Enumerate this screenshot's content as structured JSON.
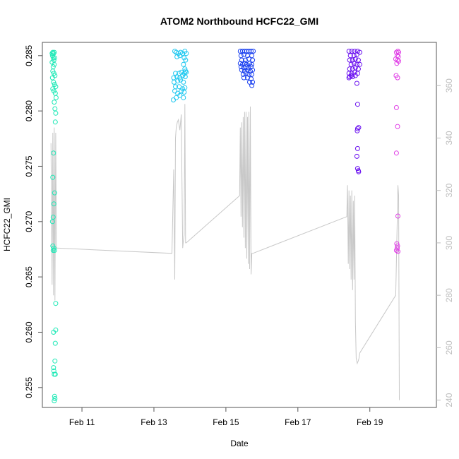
{
  "chart_data": {
    "type": "scatter",
    "title": "ATOM2 Northbound HCFC22_GMI",
    "xlabel": "Date",
    "ylabel": "HCFC22_GMI",
    "x_unit": "days in February",
    "xlim": [
      9.9,
      20.85
    ],
    "ylim": [
      0.2532,
      0.2862
    ],
    "y2lim": [
      237.2,
      376.5
    ],
    "x_ticks": [
      11,
      13,
      15,
      17,
      19
    ],
    "x_tick_labels": [
      "Feb 11",
      "Feb 13",
      "Feb 15",
      "Feb 17",
      "Feb 19"
    ],
    "y_ticks": [
      0.255,
      0.26,
      0.265,
      0.27,
      0.275,
      0.28,
      0.285
    ],
    "y_tick_labels": [
      "0.255",
      "0.260",
      "0.265",
      "0.270",
      "0.275",
      "0.280",
      "0.285"
    ],
    "y2_ticks": [
      240,
      260,
      280,
      300,
      320,
      340,
      360
    ],
    "y2_tick_labels": [
      "240",
      "260",
      "280",
      "300",
      "320",
      "340",
      "360"
    ],
    "line_color": "#c8c8c8",
    "right_axis_color": "#bdbdbd",
    "series": [
      {
        "color": "#1de9b6",
        "points": [
          [
            10.17,
            0.2852
          ],
          [
            10.19,
            0.2853
          ],
          [
            10.21,
            0.2852
          ],
          [
            10.23,
            0.2853
          ],
          [
            10.18,
            0.285
          ],
          [
            10.2,
            0.2848
          ],
          [
            10.22,
            0.2846
          ],
          [
            10.24,
            0.2848
          ],
          [
            10.17,
            0.2844
          ],
          [
            10.2,
            0.284
          ],
          [
            10.23,
            0.2842
          ],
          [
            10.19,
            0.2836
          ],
          [
            10.22,
            0.2834
          ],
          [
            10.25,
            0.2832
          ],
          [
            10.18,
            0.283
          ],
          [
            10.21,
            0.2826
          ],
          [
            10.24,
            0.2824
          ],
          [
            10.27,
            0.2822
          ],
          [
            10.19,
            0.282
          ],
          [
            10.22,
            0.2818
          ],
          [
            10.26,
            0.2816
          ],
          [
            10.28,
            0.2812
          ],
          [
            10.23,
            0.2808
          ],
          [
            10.25,
            0.2802
          ],
          [
            10.27,
            0.2798
          ],
          [
            10.26,
            0.279
          ],
          [
            10.21,
            0.2762
          ],
          [
            10.19,
            0.274
          ],
          [
            10.24,
            0.2726
          ],
          [
            10.22,
            0.2716
          ],
          [
            10.2,
            0.2704
          ],
          [
            10.18,
            0.27
          ],
          [
            10.19,
            0.2678
          ],
          [
            10.22,
            0.2676
          ],
          [
            10.2,
            0.2674
          ],
          [
            10.24,
            0.2674
          ],
          [
            10.27,
            0.2626
          ],
          [
            10.27,
            0.2602
          ],
          [
            10.21,
            0.26
          ],
          [
            10.26,
            0.259
          ],
          [
            10.25,
            0.2574
          ],
          [
            10.21,
            0.2568
          ],
          [
            10.22,
            0.2565
          ],
          [
            10.23,
            0.2562
          ],
          [
            10.26,
            0.2562
          ],
          [
            10.24,
            0.2542
          ],
          [
            10.25,
            0.254
          ],
          [
            10.23,
            0.2538
          ]
        ]
      },
      {
        "color": "#1ec8f0",
        "points": [
          [
            13.58,
            0.2854
          ],
          [
            13.62,
            0.2853
          ],
          [
            13.68,
            0.2852
          ],
          [
            13.74,
            0.2853
          ],
          [
            13.8,
            0.2852
          ],
          [
            13.86,
            0.2854
          ],
          [
            13.9,
            0.2852
          ],
          [
            13.64,
            0.2849
          ],
          [
            13.72,
            0.285
          ],
          [
            13.84,
            0.2848
          ],
          [
            13.88,
            0.2846
          ],
          [
            13.82,
            0.2842
          ],
          [
            13.86,
            0.2838
          ],
          [
            13.88,
            0.2836
          ],
          [
            13.6,
            0.2834
          ],
          [
            13.7,
            0.2834
          ],
          [
            13.76,
            0.2835
          ],
          [
            13.85,
            0.2834
          ],
          [
            13.9,
            0.2835
          ],
          [
            13.55,
            0.283
          ],
          [
            13.64,
            0.2831
          ],
          [
            13.72,
            0.283
          ],
          [
            13.8,
            0.2832
          ],
          [
            13.87,
            0.2831
          ],
          [
            13.56,
            0.2826
          ],
          [
            13.66,
            0.2827
          ],
          [
            13.74,
            0.2828
          ],
          [
            13.82,
            0.2826
          ],
          [
            13.6,
            0.2822
          ],
          [
            13.7,
            0.2822
          ],
          [
            13.8,
            0.282
          ],
          [
            13.86,
            0.2821
          ],
          [
            13.58,
            0.2818
          ],
          [
            13.66,
            0.2816
          ],
          [
            13.76,
            0.2818
          ],
          [
            13.84,
            0.2817
          ],
          [
            13.62,
            0.2812
          ],
          [
            13.72,
            0.2814
          ],
          [
            13.82,
            0.2812
          ],
          [
            13.54,
            0.281
          ]
        ]
      },
      {
        "color": "#1a40f0",
        "points": [
          [
            15.4,
            0.2854
          ],
          [
            15.46,
            0.2854
          ],
          [
            15.52,
            0.2854
          ],
          [
            15.58,
            0.2854
          ],
          [
            15.64,
            0.2854
          ],
          [
            15.7,
            0.2854
          ],
          [
            15.76,
            0.2854
          ],
          [
            15.42,
            0.285
          ],
          [
            15.5,
            0.2851
          ],
          [
            15.6,
            0.285
          ],
          [
            15.72,
            0.285
          ],
          [
            15.44,
            0.2846
          ],
          [
            15.54,
            0.2846
          ],
          [
            15.64,
            0.2847
          ],
          [
            15.74,
            0.2846
          ],
          [
            15.4,
            0.2843
          ],
          [
            15.46,
            0.2842
          ],
          [
            15.52,
            0.2843
          ],
          [
            15.58,
            0.2842
          ],
          [
            15.66,
            0.2843
          ],
          [
            15.72,
            0.2842
          ],
          [
            15.42,
            0.284
          ],
          [
            15.5,
            0.2839
          ],
          [
            15.56,
            0.284
          ],
          [
            15.62,
            0.2839
          ],
          [
            15.7,
            0.284
          ],
          [
            15.44,
            0.2837
          ],
          [
            15.52,
            0.2836
          ],
          [
            15.6,
            0.2837
          ],
          [
            15.68,
            0.2836
          ],
          [
            15.74,
            0.2837
          ],
          [
            15.48,
            0.2833
          ],
          [
            15.56,
            0.2834
          ],
          [
            15.64,
            0.2833
          ],
          [
            15.72,
            0.2833
          ],
          [
            15.5,
            0.283
          ],
          [
            15.6,
            0.283
          ],
          [
            15.7,
            0.2829
          ],
          [
            15.66,
            0.2826
          ],
          [
            15.74,
            0.2826
          ],
          [
            15.72,
            0.2823
          ]
        ]
      },
      {
        "color": "#6a10f0",
        "points": [
          [
            18.42,
            0.2854
          ],
          [
            18.5,
            0.2854
          ],
          [
            18.58,
            0.2854
          ],
          [
            18.66,
            0.2854
          ],
          [
            18.72,
            0.2853
          ],
          [
            18.46,
            0.285
          ],
          [
            18.56,
            0.285
          ],
          [
            18.64,
            0.2851
          ],
          [
            18.44,
            0.2846
          ],
          [
            18.52,
            0.2846
          ],
          [
            18.6,
            0.2847
          ],
          [
            18.68,
            0.2846
          ],
          [
            18.48,
            0.2842
          ],
          [
            18.56,
            0.2843
          ],
          [
            18.64,
            0.2842
          ],
          [
            18.72,
            0.2842
          ],
          [
            18.44,
            0.2838
          ],
          [
            18.52,
            0.2838
          ],
          [
            18.6,
            0.2839
          ],
          [
            18.68,
            0.2838
          ],
          [
            18.42,
            0.2834
          ],
          [
            18.5,
            0.2834
          ],
          [
            18.58,
            0.2835
          ],
          [
            18.66,
            0.2834
          ],
          [
            18.44,
            0.2831
          ],
          [
            18.52,
            0.2831
          ],
          [
            18.6,
            0.2832
          ],
          [
            18.42,
            0.283
          ],
          [
            18.48,
            0.2832
          ],
          [
            18.64,
            0.2825
          ],
          [
            18.66,
            0.2806
          ],
          [
            18.66,
            0.2784
          ],
          [
            18.69,
            0.2785
          ],
          [
            18.65,
            0.2782
          ],
          [
            18.66,
            0.2766
          ],
          [
            18.64,
            0.2759
          ],
          [
            18.66,
            0.2748
          ],
          [
            18.68,
            0.2746
          ],
          [
            18.69,
            0.2745
          ]
        ]
      },
      {
        "color": "#e040e6",
        "points": [
          [
            19.74,
            0.2853
          ],
          [
            19.78,
            0.2854
          ],
          [
            19.8,
            0.2853
          ],
          [
            19.76,
            0.285
          ],
          [
            19.79,
            0.2849
          ],
          [
            19.72,
            0.2847
          ],
          [
            19.77,
            0.2846
          ],
          [
            19.8,
            0.2845
          ],
          [
            19.75,
            0.2843
          ],
          [
            19.73,
            0.2832
          ],
          [
            19.77,
            0.283
          ],
          [
            19.74,
            0.2803
          ],
          [
            19.77,
            0.2786
          ],
          [
            19.74,
            0.2762
          ],
          [
            19.78,
            0.2705
          ],
          [
            19.75,
            0.268
          ],
          [
            19.77,
            0.2678
          ],
          [
            19.76,
            0.2676
          ],
          [
            19.74,
            0.2674
          ],
          [
            19.78,
            0.2673
          ]
        ]
      }
    ],
    "line": {
      "x": [
        10.14,
        10.17,
        10.19,
        10.21,
        10.23,
        10.25,
        10.27,
        10.29,
        10.3,
        13.5,
        13.55,
        13.58,
        13.6,
        13.62,
        13.65,
        13.68,
        13.72,
        13.76,
        13.8,
        13.82,
        13.84,
        13.86,
        13.88,
        13.9,
        15.38,
        15.4,
        15.42,
        15.44,
        15.46,
        15.48,
        15.5,
        15.52,
        15.54,
        15.56,
        15.58,
        15.6,
        15.62,
        15.64,
        15.66,
        15.68,
        15.7,
        15.72,
        15.75,
        18.36,
        18.38,
        18.4,
        18.42,
        18.44,
        18.46,
        18.48,
        18.5,
        18.52,
        18.54,
        18.56,
        18.58,
        18.6,
        18.62,
        18.65,
        18.68,
        18.7,
        18.72,
        19.72,
        19.76,
        19.78,
        19.8,
        19.82
      ],
      "y": [
        338,
        284,
        342,
        280,
        344,
        278,
        342,
        298,
        298,
        296,
        328,
        286,
        340,
        344,
        346,
        347,
        343,
        349,
        298,
        301,
        303,
        353,
        300,
        300,
        318,
        344,
        310,
        346,
        306,
        348,
        302,
        350,
        298,
        350,
        294,
        348,
        292,
        350,
        290,
        352,
        288,
        296,
        296,
        310,
        322,
        292,
        320,
        290,
        318,
        286,
        320,
        282,
        316,
        286,
        318,
        270,
        256,
        254,
        255,
        256,
        258,
        280,
        308,
        322,
        318,
        240
      ]
    }
  }
}
